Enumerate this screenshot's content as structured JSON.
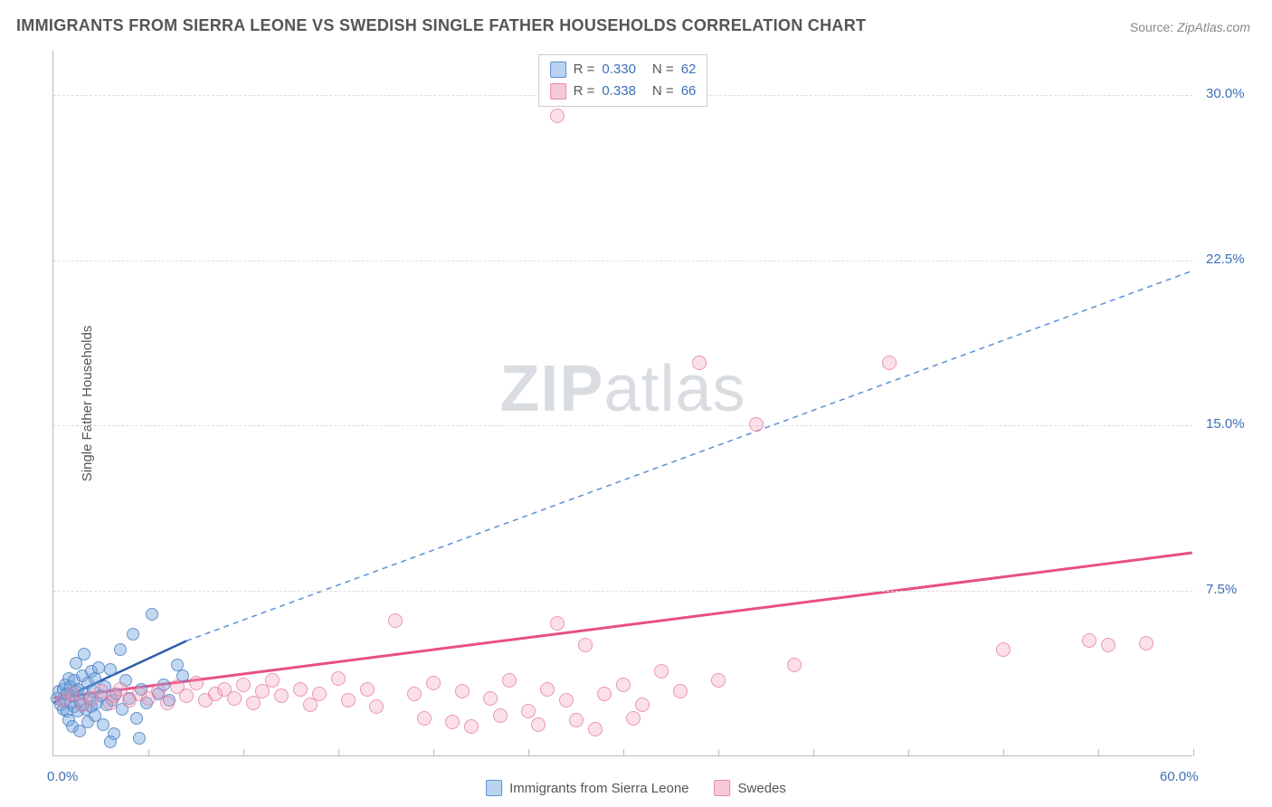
{
  "title": "IMMIGRANTS FROM SIERRA LEONE VS SWEDISH SINGLE FATHER HOUSEHOLDS CORRELATION CHART",
  "source_label": "Source:",
  "source_value": "ZipAtlas.com",
  "ylabel": "Single Father Households",
  "watermark_a": "ZIP",
  "watermark_b": "atlas",
  "chart": {
    "type": "scatter",
    "xlim": [
      0,
      60
    ],
    "ylim": [
      0,
      32
    ],
    "xtick_min_label": "0.0%",
    "xtick_max_label": "60.0%",
    "xtick_positions": [
      5,
      10,
      15,
      20,
      25,
      30,
      35,
      40,
      45,
      50,
      55,
      60
    ],
    "ytick_labels": [
      {
        "v": 7.5,
        "label": "7.5%"
      },
      {
        "v": 15.0,
        "label": "15.0%"
      },
      {
        "v": 22.5,
        "label": "22.5%"
      },
      {
        "v": 30.0,
        "label": "30.0%"
      }
    ],
    "grid_color": "#dddddd",
    "axis_color": "#bbbbbb",
    "background": "#ffffff",
    "series": [
      {
        "id": "a",
        "name": "Immigrants from Sierra Leone",
        "color_fill": "rgba(118,168,222,0.45)",
        "color_stroke": "#4a78be",
        "swatch_fill": "#b9d3f0",
        "swatch_border": "#5a8fd6",
        "marker_size_px": 14,
        "R": "0.330",
        "N": "62",
        "trend": {
          "x1": 0,
          "y1": 2.4,
          "x2": 7,
          "y2": 5.2,
          "stroke": "#2e5ea8",
          "width": 2.5,
          "dash": "none"
        },
        "trend_ext": {
          "x1": 7,
          "y1": 5.2,
          "x2": 60,
          "y2": 22.0,
          "stroke": "#5a8fd6",
          "width": 1.5,
          "dash": "6,5"
        },
        "points": [
          [
            0.2,
            2.6
          ],
          [
            0.3,
            2.9
          ],
          [
            0.4,
            2.3
          ],
          [
            0.5,
            3.0
          ],
          [
            0.5,
            2.1
          ],
          [
            0.6,
            2.5
          ],
          [
            0.6,
            3.2
          ],
          [
            0.7,
            2.0
          ],
          [
            0.7,
            2.8
          ],
          [
            0.8,
            3.5
          ],
          [
            0.8,
            1.6
          ],
          [
            0.9,
            2.4
          ],
          [
            0.9,
            3.1
          ],
          [
            1.0,
            2.7
          ],
          [
            1.0,
            1.3
          ],
          [
            1.1,
            3.4
          ],
          [
            1.1,
            2.2
          ],
          [
            1.2,
            2.9
          ],
          [
            1.2,
            4.2
          ],
          [
            1.3,
            2.0
          ],
          [
            1.3,
            3.0
          ],
          [
            1.4,
            2.5
          ],
          [
            1.4,
            1.1
          ],
          [
            1.5,
            3.6
          ],
          [
            1.5,
            2.3
          ],
          [
            1.6,
            2.8
          ],
          [
            1.6,
            4.6
          ],
          [
            1.7,
            2.1
          ],
          [
            1.8,
            3.3
          ],
          [
            1.8,
            1.5
          ],
          [
            1.9,
            2.6
          ],
          [
            2.0,
            3.8
          ],
          [
            2.0,
            2.2
          ],
          [
            2.1,
            2.9
          ],
          [
            2.2,
            1.8
          ],
          [
            2.2,
            3.5
          ],
          [
            2.3,
            2.4
          ],
          [
            2.4,
            4.0
          ],
          [
            2.5,
            2.7
          ],
          [
            2.6,
            1.4
          ],
          [
            2.7,
            3.1
          ],
          [
            2.8,
            2.3
          ],
          [
            3.0,
            3.9
          ],
          [
            3.1,
            2.5
          ],
          [
            3.2,
            1.0
          ],
          [
            3.3,
            2.8
          ],
          [
            3.5,
            4.8
          ],
          [
            3.6,
            2.1
          ],
          [
            3.8,
            3.4
          ],
          [
            4.0,
            2.6
          ],
          [
            4.2,
            5.5
          ],
          [
            4.4,
            1.7
          ],
          [
            4.6,
            3.0
          ],
          [
            4.9,
            2.4
          ],
          [
            5.2,
            6.4
          ],
          [
            5.5,
            2.8
          ],
          [
            5.8,
            3.2
          ],
          [
            6.1,
            2.5
          ],
          [
            6.5,
            4.1
          ],
          [
            6.8,
            3.6
          ],
          [
            4.5,
            0.8
          ],
          [
            3.0,
            0.6
          ]
        ]
      },
      {
        "id": "b",
        "name": "Swedes",
        "color_fill": "rgba(244,160,190,0.32)",
        "color_stroke": "#e16e96",
        "swatch_fill": "#f6c9d9",
        "swatch_border": "#e888ab",
        "marker_size_px": 16,
        "R": "0.338",
        "N": "66",
        "trend": {
          "x1": 0,
          "y1": 2.6,
          "x2": 60,
          "y2": 9.2,
          "stroke": "#e94f87",
          "width": 3,
          "dash": "none"
        },
        "points": [
          [
            0.5,
            2.5
          ],
          [
            1.0,
            2.8
          ],
          [
            1.5,
            2.3
          ],
          [
            2.0,
            2.6
          ],
          [
            2.5,
            2.9
          ],
          [
            3.0,
            2.4
          ],
          [
            3.2,
            2.7
          ],
          [
            3.5,
            3.0
          ],
          [
            4.0,
            2.5
          ],
          [
            4.5,
            2.8
          ],
          [
            5.0,
            2.6
          ],
          [
            5.5,
            2.9
          ],
          [
            6.0,
            2.4
          ],
          [
            6.5,
            3.1
          ],
          [
            7.0,
            2.7
          ],
          [
            7.5,
            3.3
          ],
          [
            8.0,
            2.5
          ],
          [
            8.5,
            2.8
          ],
          [
            9.0,
            3.0
          ],
          [
            9.5,
            2.6
          ],
          [
            10.0,
            3.2
          ],
          [
            10.5,
            2.4
          ],
          [
            11.0,
            2.9
          ],
          [
            11.5,
            3.4
          ],
          [
            12.0,
            2.7
          ],
          [
            13.0,
            3.0
          ],
          [
            13.5,
            2.3
          ],
          [
            14.0,
            2.8
          ],
          [
            15.0,
            3.5
          ],
          [
            15.5,
            2.5
          ],
          [
            16.5,
            3.0
          ],
          [
            17.0,
            2.2
          ],
          [
            18.0,
            6.1
          ],
          [
            19.0,
            2.8
          ],
          [
            19.5,
            1.7
          ],
          [
            20.0,
            3.3
          ],
          [
            21.0,
            1.5
          ],
          [
            21.5,
            2.9
          ],
          [
            22.0,
            1.3
          ],
          [
            23.0,
            2.6
          ],
          [
            23.5,
            1.8
          ],
          [
            24.0,
            3.4
          ],
          [
            25.0,
            2.0
          ],
          [
            25.5,
            1.4
          ],
          [
            26.0,
            3.0
          ],
          [
            26.5,
            6.0
          ],
          [
            27.0,
            2.5
          ],
          [
            27.5,
            1.6
          ],
          [
            28.0,
            5.0
          ],
          [
            28.5,
            1.2
          ],
          [
            29.0,
            2.8
          ],
          [
            30.0,
            3.2
          ],
          [
            30.5,
            1.7
          ],
          [
            31.0,
            2.3
          ],
          [
            32.0,
            3.8
          ],
          [
            33.0,
            2.9
          ],
          [
            34.0,
            17.8
          ],
          [
            35.0,
            3.4
          ],
          [
            37.0,
            15.0
          ],
          [
            39.0,
            4.1
          ],
          [
            44.0,
            17.8
          ],
          [
            50.0,
            4.8
          ],
          [
            54.5,
            5.2
          ],
          [
            55.5,
            5.0
          ],
          [
            57.5,
            5.1
          ],
          [
            26.5,
            29.0
          ]
        ]
      }
    ]
  },
  "legend_bottom": [
    {
      "series": "a"
    },
    {
      "series": "b"
    }
  ]
}
